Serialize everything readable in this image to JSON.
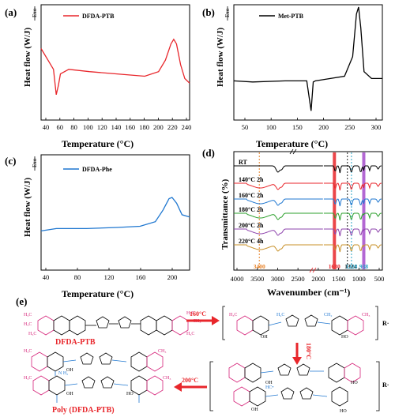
{
  "panel_a": {
    "label": "(a)",
    "ylabel": "Heat flow (W/J)",
    "exo": "Exo",
    "xlabel": "Temperature (°C)",
    "legend": "DFDA-PTB",
    "color": "#e8262b",
    "x_ticks": [
      "40",
      "60",
      "80",
      "100",
      "120",
      "140",
      "160",
      "180",
      "200",
      "220",
      "240"
    ]
  },
  "panel_b": {
    "label": "(b)",
    "ylabel": "Heat flow (W/J)",
    "exo": "Exo",
    "xlabel": "Temperature (°C)",
    "legend": "Met-PTB",
    "color": "#000000",
    "x_ticks": [
      "50",
      "100",
      "150",
      "200",
      "250",
      "300"
    ]
  },
  "panel_c": {
    "label": "(c)",
    "ylabel": "Heat flow (W/J)",
    "exo": "Exo",
    "xlabel": "Temperature (°C)",
    "legend": "DFDA-Phe",
    "color": "#1f77d0",
    "x_ticks": [
      "40",
      "80",
      "120",
      "160",
      "200"
    ]
  },
  "panel_d": {
    "label": "(d)",
    "ylabel": "Transmittance (%)",
    "xlabel": "Wavenumber (cm⁻¹)",
    "x_ticks": [
      "4000",
      "3500",
      "3000",
      "2500",
      "2000",
      "1500",
      "1000",
      "500"
    ],
    "series": [
      {
        "name": "RT",
        "color": "#000000"
      },
      {
        "name": "140°C 2h",
        "color": "#e8262b"
      },
      {
        "name": "160°C 2h",
        "color": "#1f77d0"
      },
      {
        "name": "180°C 2h",
        "color": "#2ca02c"
      },
      {
        "name": "200°C 2h",
        "color": "#8e44ad"
      },
      {
        "name": "220°C 4h",
        "color": "#c8912a"
      }
    ],
    "markers": [
      {
        "text": "3400",
        "color": "#e8842b"
      },
      {
        "text": "1630",
        "color": "#e8262b"
      },
      {
        "text": "1324",
        "color": "#222222"
      },
      {
        "text": "1228",
        "color": "#29a3c7"
      },
      {
        "text": "938",
        "color": "#29a3c7"
      }
    ]
  },
  "panel_e": {
    "label": "(e)",
    "monomer": "DFDA-PTB",
    "polymer": "Poly (DFDA-PTB)",
    "step1": "160°C",
    "step2": "180°C",
    "step3": "200°C",
    "radical": "R·"
  },
  "chart_data": [
    {
      "type": "line",
      "title": "",
      "legend": "DFDA-PTB",
      "xlabel": "Temperature (°C)",
      "ylabel": "Heat flow (W/J)",
      "xlim": [
        30,
        245
      ],
      "x": [
        30,
        40,
        48,
        52,
        55,
        58,
        70,
        100,
        140,
        180,
        200,
        210,
        218,
        222,
        226,
        232,
        238,
        245
      ],
      "y": [
        0.62,
        0.52,
        0.44,
        0.22,
        0.3,
        0.4,
        0.44,
        0.42,
        0.4,
        0.38,
        0.42,
        0.52,
        0.66,
        0.7,
        0.66,
        0.48,
        0.36,
        0.32
      ]
    },
    {
      "type": "line",
      "title": "",
      "legend": "Met-PTB",
      "xlabel": "Temperature (°C)",
      "ylabel": "Heat flow (W/J)",
      "xlim": [
        25,
        300
      ],
      "x": [
        25,
        60,
        120,
        160,
        168,
        172,
        176,
        190,
        230,
        245,
        252,
        256,
        260,
        266,
        280,
        300
      ],
      "y": [
        0.34,
        0.33,
        0.34,
        0.34,
        0.08,
        0.33,
        0.34,
        0.35,
        0.38,
        0.55,
        0.92,
        0.98,
        0.8,
        0.42,
        0.36,
        0.36
      ]
    },
    {
      "type": "line",
      "title": "",
      "legend": "DFDA-Phe",
      "xlabel": "Temperature (°C)",
      "ylabel": "Heat flow (W/J)",
      "xlim": [
        40,
        235
      ],
      "x": [
        40,
        60,
        100,
        140,
        170,
        190,
        200,
        208,
        212,
        218,
        225,
        235
      ],
      "y": [
        0.34,
        0.36,
        0.36,
        0.37,
        0.38,
        0.42,
        0.52,
        0.62,
        0.63,
        0.58,
        0.48,
        0.46
      ]
    },
    {
      "type": "line",
      "title": "",
      "xlabel": "Wavenumber (cm⁻¹)",
      "ylabel": "Transmittance (%)",
      "xlim": [
        4000,
        500
      ],
      "series_names": [
        "RT",
        "140°C 2h",
        "160°C 2h",
        "180°C 2h",
        "200°C 2h",
        "220°C 4h"
      ],
      "marker_positions": [
        3400,
        1630,
        1324,
        1228,
        938
      ]
    }
  ]
}
